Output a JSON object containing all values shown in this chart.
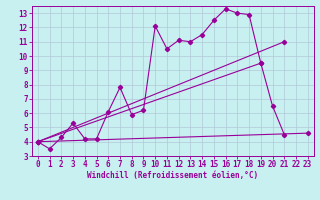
{
  "title": "",
  "xlabel": "Windchill (Refroidissement éolien,°C)",
  "background_color": "#c8f0f0",
  "grid_color": "#b0c8d8",
  "line_color": "#990099",
  "spine_color": "#990099",
  "xlim": [
    -0.5,
    23.5
  ],
  "ylim": [
    3,
    13.5
  ],
  "yticks": [
    3,
    4,
    5,
    6,
    7,
    8,
    9,
    10,
    11,
    12,
    13
  ],
  "xticks": [
    0,
    1,
    2,
    3,
    4,
    5,
    6,
    7,
    8,
    9,
    10,
    11,
    12,
    13,
    14,
    15,
    16,
    17,
    18,
    19,
    20,
    21,
    22,
    23
  ],
  "series1_x": [
    0,
    1,
    2,
    3,
    4,
    5,
    6,
    7,
    8,
    9,
    10,
    11,
    12,
    13,
    14,
    15,
    16,
    17,
    18,
    19,
    20,
    21
  ],
  "series1_y": [
    4.0,
    3.5,
    4.3,
    5.3,
    4.2,
    4.2,
    6.1,
    7.8,
    5.9,
    6.2,
    12.1,
    10.5,
    11.1,
    11.0,
    11.5,
    12.5,
    13.3,
    13.0,
    12.9,
    9.5,
    6.5,
    4.5
  ],
  "series2_x": [
    0,
    23
  ],
  "series2_y": [
    4.0,
    4.6
  ],
  "series3_x": [
    0,
    19
  ],
  "series3_y": [
    4.0,
    9.5
  ],
  "series4_x": [
    0,
    21
  ],
  "series4_y": [
    4.0,
    11.0
  ],
  "tick_fontsize": 5.5,
  "xlabel_fontsize": 5.5
}
